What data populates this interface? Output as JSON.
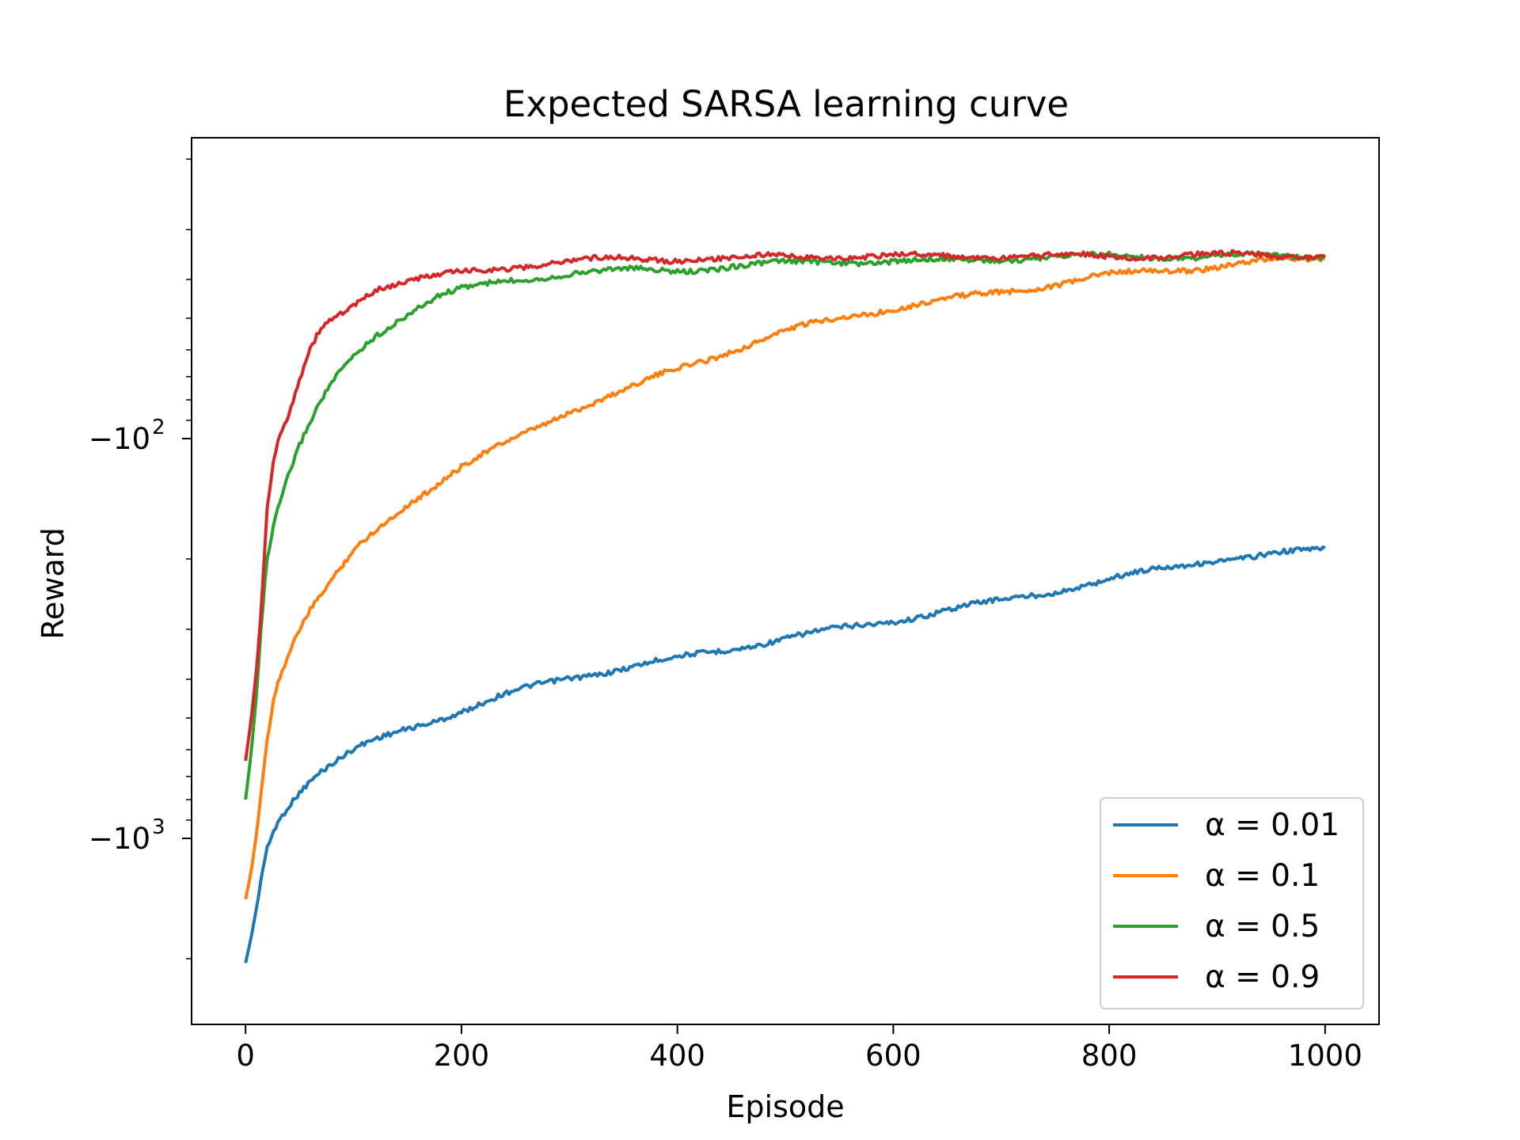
{
  "chart_data": {
    "type": "line",
    "title": "Expected SARSA learning curve",
    "xlabel": "Episode",
    "ylabel": "Reward",
    "xlim": [
      -50,
      1050
    ],
    "ylim": [
      -4000,
      -28
    ],
    "yscale": "symlog",
    "x_ticks": [
      0,
      200,
      400,
      600,
      800,
      1000
    ],
    "y_ticks": [
      {
        "value": -100,
        "base": "−10",
        "exp": "2"
      },
      {
        "value": -1000,
        "base": "−10",
        "exp": "3"
      }
    ],
    "grid": false,
    "legend_position": "lower-right",
    "series": [
      {
        "name": "α = 0.01",
        "color": "#1f77b4",
        "x": [
          0,
          5,
          10,
          15,
          20,
          25,
          30,
          40,
          50,
          60,
          70,
          80,
          90,
          100,
          120,
          150,
          200,
          250,
          300,
          350,
          400,
          450,
          500,
          550,
          600,
          650,
          700,
          750,
          800,
          850,
          900,
          950,
          1000
        ],
        "y": [
          -2050,
          -1780,
          -1500,
          -1220,
          -1050,
          -960,
          -900,
          -820,
          -760,
          -715,
          -680,
          -655,
          -630,
          -605,
          -570,
          -530,
          -480,
          -430,
          -395,
          -375,
          -355,
          -335,
          -315,
          -300,
          -285,
          -268,
          -255,
          -240,
          -225,
          -212,
          -200,
          -195,
          -190
        ]
      },
      {
        "name": "α = 0.1",
        "color": "#ff7f0e",
        "x": [
          0,
          5,
          10,
          15,
          20,
          25,
          30,
          40,
          50,
          60,
          70,
          80,
          90,
          100,
          120,
          150,
          200,
          250,
          300,
          350,
          400,
          450,
          500,
          550,
          600,
          650,
          700,
          750,
          800,
          850,
          900,
          950,
          1000
        ],
        "y": [
          -1420,
          -1220,
          -980,
          -730,
          -560,
          -460,
          -400,
          -345,
          -300,
          -270,
          -248,
          -228,
          -210,
          -192,
          -170,
          -145,
          -118,
          -100,
          -85,
          -76,
          -67,
          -60,
          -54,
          -50,
          -47,
          -45,
          -43,
          -41,
          -39,
          -38,
          -37,
          -36,
          -35.5
        ]
      },
      {
        "name": "α = 0.5",
        "color": "#2ca02c",
        "x": [
          0,
          5,
          10,
          15,
          20,
          25,
          30,
          40,
          50,
          60,
          70,
          80,
          90,
          100,
          120,
          150,
          180,
          200,
          250,
          300,
          350,
          400,
          450,
          500,
          550,
          600,
          650,
          700,
          750,
          800,
          850,
          900,
          950,
          1000
        ],
        "y": [
          -800,
          -620,
          -440,
          -280,
          -200,
          -170,
          -150,
          -124,
          -105,
          -92,
          -81,
          -73,
          -67,
          -62,
          -55,
          -48.5,
          -44,
          -42.5,
          -40,
          -38.5,
          -38,
          -38,
          -37,
          -36.5,
          -36,
          -36,
          -36,
          -35.5,
          -35,
          -35,
          -35,
          -35,
          -35,
          -35
        ]
      },
      {
        "name": "α = 0.9",
        "color": "#d62728",
        "x": [
          0,
          5,
          10,
          15,
          20,
          25,
          30,
          40,
          50,
          60,
          70,
          80,
          90,
          100,
          110,
          120,
          150,
          200,
          250,
          300,
          350,
          400,
          450,
          500,
          550,
          600,
          650,
          700,
          750,
          800,
          850,
          900,
          950,
          1000
        ],
        "y": [
          -640,
          -510,
          -380,
          -260,
          -150,
          -120,
          -103,
          -88,
          -72,
          -60,
          -53,
          -50,
          -48,
          -46,
          -44,
          -42,
          -40.5,
          -38.5,
          -37,
          -36,
          -35.5,
          -35.5,
          -35.5,
          -35,
          -35,
          -35,
          -35,
          -35,
          -35,
          -35,
          -34.8,
          -34.8,
          -34.8,
          -34.8
        ]
      }
    ]
  }
}
